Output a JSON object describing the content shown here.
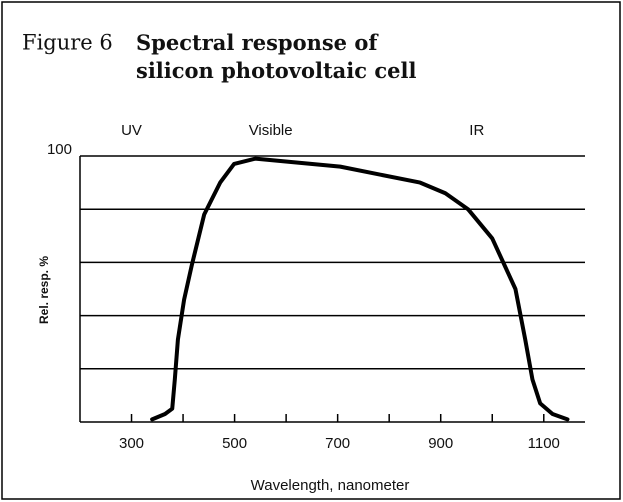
{
  "chart_data": {
    "type": "line",
    "figure_label": "Figure 6",
    "title": "Spectral response of silicon photovoltaic cell",
    "xlabel": "Wavelength, nanometer",
    "ylabel": "Rel. resp. %",
    "regions": [
      {
        "label": "UV",
        "x": 300
      },
      {
        "label": "Visible",
        "x": 570
      },
      {
        "label": "IR",
        "x": 970
      }
    ],
    "x": [
      340,
      365,
      379,
      384,
      390,
      402,
      417,
      441,
      472,
      499,
      540,
      705,
      860,
      909,
      953,
      1000,
      1045,
      1064,
      1078,
      1093,
      1117,
      1146
    ],
    "series": [
      {
        "name": "Relative response",
        "color": "#000000",
        "values": [
          1,
          3,
          5,
          16,
          31,
          46,
          59,
          78,
          90,
          97,
          99,
          96,
          90,
          86,
          80,
          69,
          50,
          31,
          16,
          7,
          3,
          1
        ]
      }
    ],
    "xlim": [
      200,
      1180
    ],
    "xticks": [
      300,
      500,
      700,
      900,
      1100
    ],
    "xminor_ticks": [
      400,
      600,
      800,
      1000
    ],
    "ylim": [
      0,
      100
    ],
    "yticks": [
      100
    ],
    "ygrid": [
      20,
      40,
      60,
      80,
      100
    ]
  }
}
